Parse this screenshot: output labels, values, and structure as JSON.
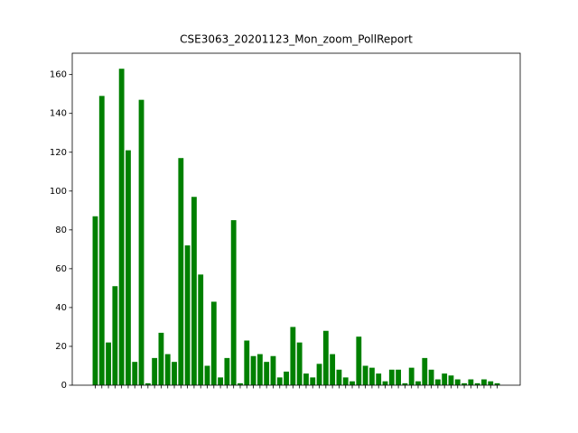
{
  "chart_data": {
    "type": "bar",
    "title": "CSE3063_20201123_Mon_zoom_PollReport",
    "categories": [
      null,
      null,
      null,
      null,
      null,
      null,
      null,
      null,
      null,
      null,
      null,
      null,
      null,
      null,
      null,
      null,
      null,
      null,
      null,
      null,
      null,
      null,
      null,
      null,
      null,
      null,
      null,
      null,
      null,
      null,
      null,
      null,
      null,
      null,
      null,
      null,
      null,
      null,
      null,
      null,
      null,
      null,
      null,
      null,
      null,
      null,
      null,
      null,
      null,
      null,
      null,
      null,
      null,
      null,
      null,
      null,
      null,
      null,
      null,
      null,
      null,
      null
    ],
    "values": [
      87,
      149,
      22,
      51,
      163,
      121,
      12,
      147,
      1,
      14,
      27,
      16,
      12,
      117,
      72,
      97,
      57,
      10,
      43,
      4,
      14,
      85,
      1,
      23,
      15,
      16,
      12,
      15,
      4,
      7,
      30,
      22,
      6,
      4,
      11,
      28,
      16,
      8,
      4,
      2,
      25,
      10,
      9,
      6,
      2,
      8,
      8,
      1,
      9,
      2,
      14,
      8,
      3,
      6,
      5,
      3,
      1,
      3,
      1,
      3,
      2,
      1
    ],
    "color": "#008000",
    "ylim": [
      0,
      171
    ],
    "yticks": [
      0,
      20,
      40,
      60,
      80,
      100,
      120,
      140,
      160
    ],
    "grid": false
  }
}
